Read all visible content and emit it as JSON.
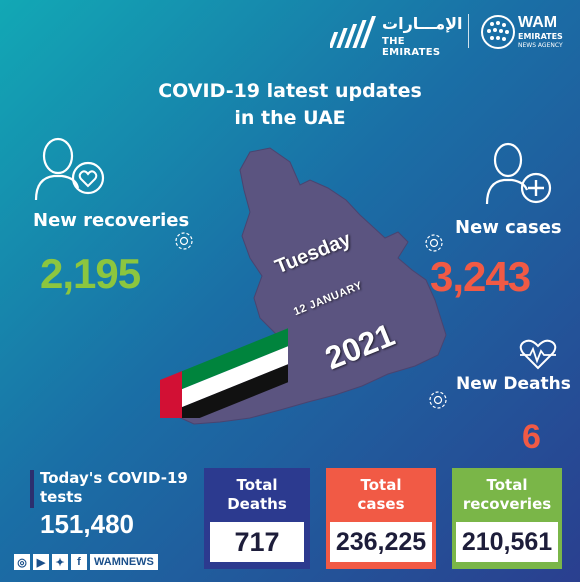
{
  "header": {
    "emirates_arabic": "الإمـــارات",
    "emirates_english": "THE EMIRATES",
    "wam_name": "WAM",
    "wam_sub1": "EMIRATES",
    "wam_sub2": "NEWS AGENCY"
  },
  "title_line1": "COVID-19 latest updates",
  "title_line2": "in the UAE",
  "recoveries": {
    "label": "New recoveries",
    "value": "2,195",
    "color": "#8cc63f"
  },
  "cases": {
    "label": "New cases",
    "value": "3,243",
    "color": "#f15a45"
  },
  "deaths": {
    "label": "New Deaths",
    "value": "6",
    "color": "#f15a45"
  },
  "date": {
    "day": "Tuesday",
    "day_month": "12 JANUARY",
    "year": "2021"
  },
  "tests": {
    "label_line1": "Today's COVID-19",
    "label_line2": "tests",
    "value": "151,480"
  },
  "totals": [
    {
      "label_line1": "Total",
      "label_line2": "Deaths",
      "value": "717",
      "color": "#2c3a8f"
    },
    {
      "label_line1": "Total",
      "label_line2": "cases",
      "value": "236,225",
      "color": "#f15a45"
    },
    {
      "label_line1": "Total",
      "label_line2": "recoveries",
      "value": "210,561",
      "color": "#7ab648"
    }
  ],
  "social": {
    "handle": "WAMNEWS",
    "icons": [
      "instagram-icon",
      "youtube-icon",
      "twitter-icon",
      "facebook-icon"
    ]
  }
}
